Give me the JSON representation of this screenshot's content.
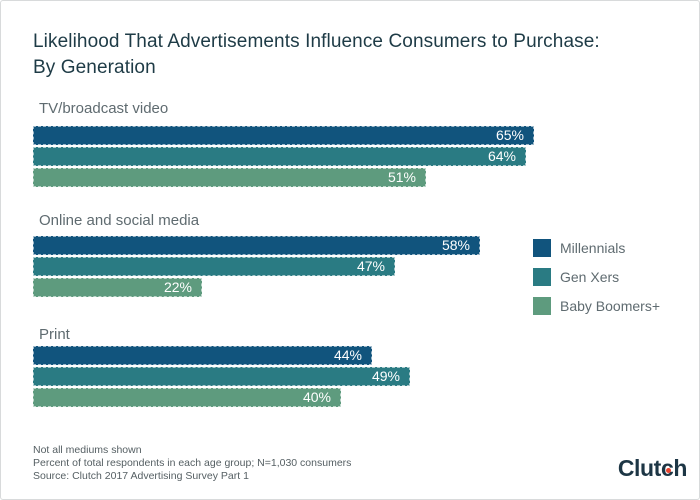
{
  "title": {
    "lines": [
      "Likelihood That Advertisements Influence Consumers to Purchase:",
      "By Generation"
    ]
  },
  "chart_data": {
    "type": "bar",
    "orientation": "horizontal",
    "value_unit": "%",
    "title": "Likelihood That Advertisements Influence Consumers to Purchase: By Generation",
    "categories": [
      "TV/broadcast video",
      "Online and social media",
      "Print"
    ],
    "series": [
      {
        "name": "Millennials",
        "color": "#11547d",
        "values": [
          65,
          58,
          44
        ]
      },
      {
        "name": "Gen Xers",
        "color": "#2a7b83",
        "values": [
          64,
          47,
          49
        ]
      },
      {
        "name": "Baby Boomers+",
        "color": "#5e9b7e",
        "values": [
          51,
          22,
          40
        ]
      }
    ],
    "xlim": [
      0,
      65
    ],
    "data_labels": "inside-end",
    "legend_position": "right",
    "grid": false
  },
  "footnotes": [
    "Not all mediums shown",
    "Percent of total respondents in each age group; N=1,030 consumers",
    "Source: Clutch 2017 Advertising Survey Part 1"
  ],
  "logo": {
    "pre": "Clut",
    "dotted_letter": "c",
    "post": "h",
    "full_name": "Clutch",
    "dot_color": "#e8432e",
    "text_color": "#1d3645"
  }
}
